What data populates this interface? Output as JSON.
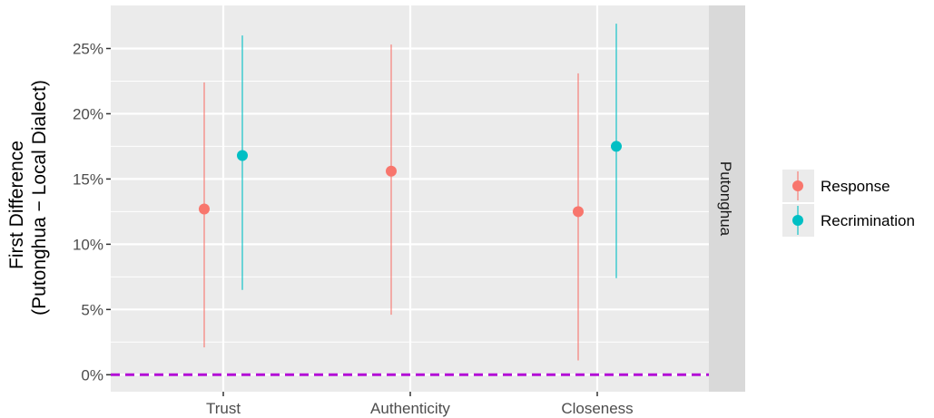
{
  "chart_data": {
    "type": "scatter",
    "subtype": "pointrange",
    "title": "",
    "xlabel": "",
    "ylabel_lines": [
      "First Difference",
      "(Putonghua − Local Dialect)"
    ],
    "categories": [
      "Trust",
      "Authenticity",
      "Closeness"
    ],
    "y_ticks": [
      0,
      0.05,
      0.1,
      0.15,
      0.2,
      0.25
    ],
    "y_tick_labels": [
      "0%",
      "5%",
      "10%",
      "15%",
      "20%",
      "25%"
    ],
    "ylim": [
      -0.013,
      0.283
    ],
    "facet_label": "Putonghua",
    "reference_line": {
      "y": 0,
      "style": "dashed",
      "color": "#b30ed6"
    },
    "grid": true,
    "legend_position": "right",
    "series": [
      {
        "name": "Response",
        "color": "#f8766d",
        "points": [
          {
            "category": "Trust",
            "estimate": 0.127,
            "lower": 0.021,
            "upper": 0.224
          },
          {
            "category": "Authenticity",
            "estimate": 0.156,
            "lower": 0.046,
            "upper": 0.253
          },
          {
            "category": "Closeness",
            "estimate": 0.125,
            "lower": 0.011,
            "upper": 0.231
          }
        ]
      },
      {
        "name": "Recrimination",
        "color": "#00bfc4",
        "points": [
          {
            "category": "Trust",
            "estimate": 0.168,
            "lower": 0.065,
            "upper": 0.26
          },
          {
            "category": "Closeness",
            "estimate": 0.175,
            "lower": 0.074,
            "upper": 0.269
          }
        ]
      }
    ]
  },
  "colors": {
    "panel_background": "#ebebeb",
    "grid_major": "#ffffff",
    "strip_background": "#d9d9d9"
  }
}
